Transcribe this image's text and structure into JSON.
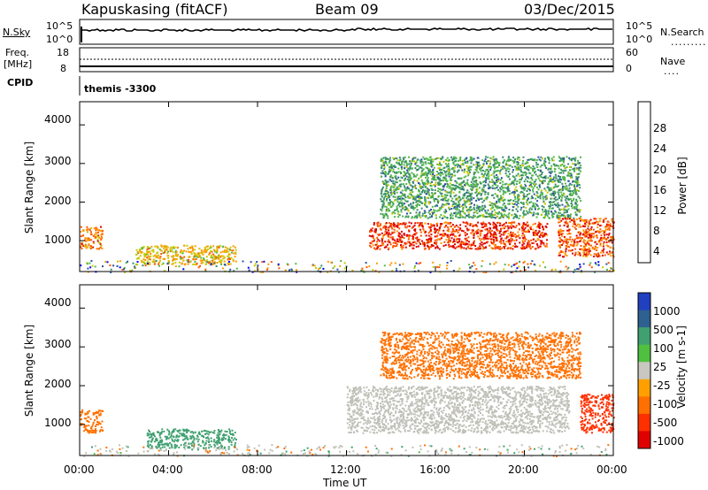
{
  "header": {
    "station": "Kapuskasing (fitACF)",
    "beam": "Beam 09",
    "date": "03/Dec/2015"
  },
  "noise_panel": {
    "left_label": "N.Sky",
    "left_ticks": [
      "10^5",
      "10^0"
    ],
    "right_label": "N.Search",
    "right_ticks": [
      "10^5",
      "10^0"
    ]
  },
  "freq_panel": {
    "left_label_line1": "Freq.",
    "left_label_line2": "[MHz]",
    "left_ticks": [
      "18",
      "8"
    ],
    "right_label": "Nave",
    "right_ticks": [
      "60",
      "0"
    ]
  },
  "cpid": {
    "label": "CPID",
    "value": "themis -3300"
  },
  "x_axis": {
    "label": "Time UT",
    "ticks": [
      "00:00",
      "04:00",
      "08:00",
      "12:00",
      "16:00",
      "20:00",
      "00:00"
    ]
  },
  "colors": {
    "power": [
      "#0000ff",
      "#2e50a8",
      "#3a8c6e",
      "#50b848",
      "#c8c800",
      "#ff9900",
      "#ff5500",
      "#dd0000"
    ],
    "velocity": [
      "#2040c0",
      "#2e6090",
      "#40a070",
      "#50c040",
      "#c8c8c0",
      "#ffa000",
      "#ff7000",
      "#ff3000",
      "#e00000"
    ],
    "ground_scatter": "#c0c0b8"
  },
  "chart_data": [
    {
      "type": "heatmap",
      "title": "",
      "xlabel": "Time UT",
      "ylabel": "Slant Range [km]",
      "xlim": [
        0,
        24
      ],
      "ylim": [
        200,
        4600
      ],
      "y_ticks": [
        "1000",
        "2000",
        "3000",
        "4000"
      ],
      "colorbar_label": "Power [dB]",
      "colorbar_ticks": [
        "4",
        "8",
        "12",
        "16",
        "20",
        "24",
        "28"
      ],
      "regions": [
        {
          "t0": 0.0,
          "t1": 1.0,
          "r0": 800,
          "r1": 1400,
          "value": 24
        },
        {
          "t0": 2.5,
          "t1": 7.0,
          "r0": 400,
          "r1": 900,
          "value": 20
        },
        {
          "t0": 13.0,
          "t1": 21.0,
          "r0": 800,
          "r1": 1500,
          "value": 28
        },
        {
          "t0": 13.5,
          "t1": 22.5,
          "r0": 1600,
          "r1": 3200,
          "value": 12
        },
        {
          "t0": 21.5,
          "t1": 24.0,
          "r0": 600,
          "r1": 1600,
          "value": 26
        }
      ]
    },
    {
      "type": "heatmap",
      "title": "",
      "xlabel": "Time UT",
      "ylabel": "Slant Range [km]",
      "xlim": [
        0,
        24
      ],
      "ylim": [
        200,
        4600
      ],
      "y_ticks": [
        "1000",
        "2000",
        "3000",
        "4000"
      ],
      "colorbar_label": "Velocity [m s-1]",
      "colorbar_ticks": [
        "1000",
        "500",
        "100",
        "25",
        "-25",
        "-100",
        "-500",
        "-1000"
      ],
      "regions": [
        {
          "t0": 0.0,
          "t1": 1.0,
          "r0": 800,
          "r1": 1400,
          "value": -100
        },
        {
          "t0": 3.0,
          "t1": 7.0,
          "r0": 400,
          "r1": 900,
          "value": 100
        },
        {
          "t0": 12.0,
          "t1": 22.0,
          "r0": 800,
          "r1": 2000,
          "value": 0
        },
        {
          "t0": 13.5,
          "t1": 22.5,
          "r0": 2200,
          "r1": 3400,
          "value": -100
        },
        {
          "t0": 22.5,
          "t1": 24.0,
          "r0": 800,
          "r1": 1800,
          "value": -500
        }
      ]
    }
  ]
}
